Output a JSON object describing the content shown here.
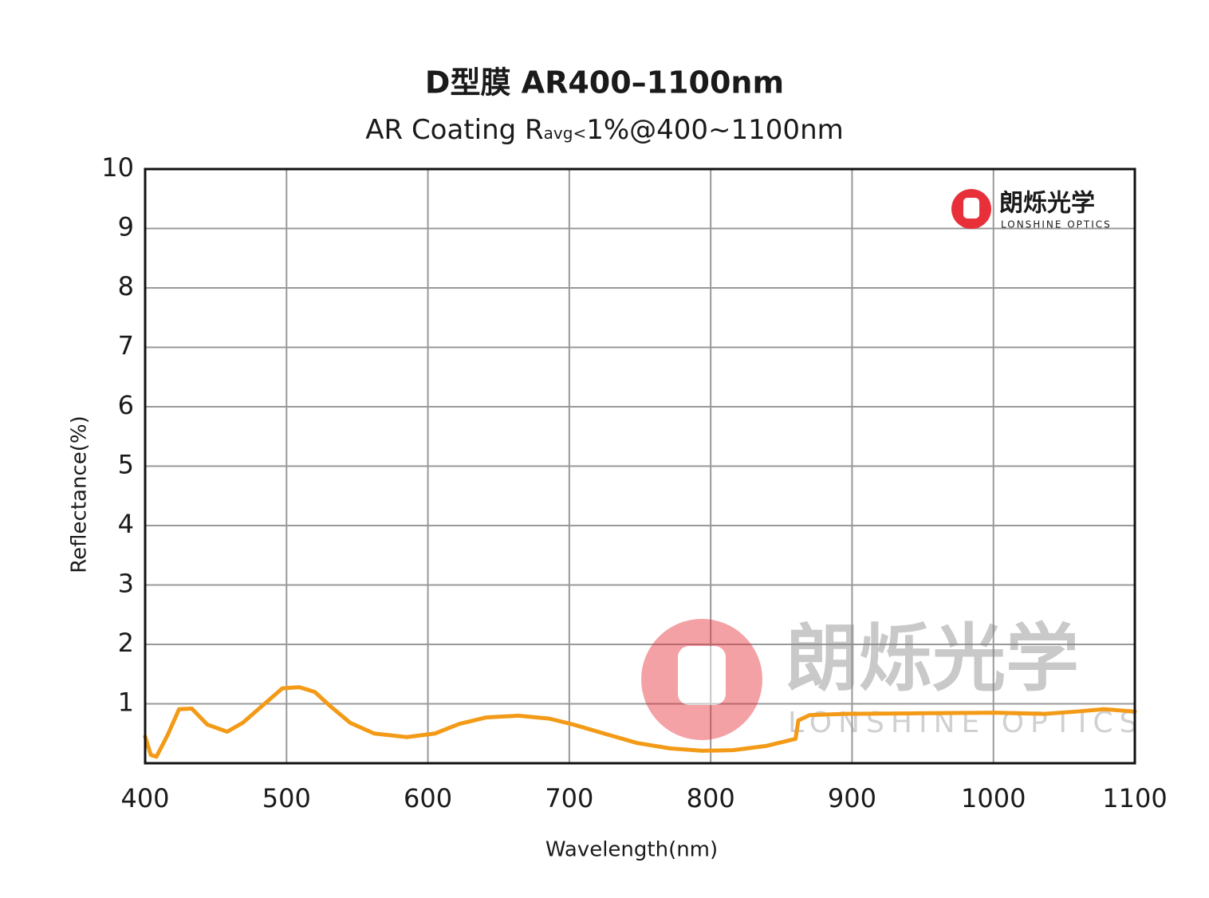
{
  "chart_data": {
    "type": "line",
    "title": "D型膜 AR400–1100nm",
    "subtitle": {
      "main": "AR Coating R",
      "sub": "avg<",
      "rest": "1%@400~1100nm"
    },
    "x_label": "Wavelength(nm)",
    "y_label": "Reflectance(%)",
    "logo": {
      "name": "朗烁光学",
      "tagline": "LONSHINE OPTICS"
    },
    "xlim": [
      400,
      1100
    ],
    "xticks": [
      400,
      500,
      600,
      700,
      800,
      900,
      1000,
      1100
    ],
    "ylim": [
      0,
      10
    ],
    "yticks": [
      1,
      2,
      3,
      4,
      5,
      6,
      7,
      8,
      9,
      10
    ],
    "grid": true,
    "x": [
      400,
      404,
      408,
      416,
      424,
      433,
      444,
      458,
      469,
      483,
      497,
      509,
      520,
      531,
      545,
      562,
      585,
      605,
      622,
      641,
      664,
      686,
      703,
      726,
      748,
      771,
      794,
      816,
      839,
      860,
      862,
      870,
      895,
      946,
      1002,
      1036,
      1059,
      1078,
      1100
    ],
    "series": [
      {
        "color": "#f39a17",
        "values": [
          0.45,
          0.14,
          0.11,
          0.48,
          0.91,
          0.92,
          0.65,
          0.53,
          0.68,
          0.97,
          1.26,
          1.28,
          1.2,
          0.96,
          0.68,
          0.5,
          0.44,
          0.5,
          0.66,
          0.77,
          0.8,
          0.75,
          0.65,
          0.49,
          0.34,
          0.25,
          0.21,
          0.22,
          0.29,
          0.41,
          0.72,
          0.81,
          0.83,
          0.84,
          0.85,
          0.83,
          0.87,
          0.91,
          0.87
        ]
      }
    ]
  }
}
